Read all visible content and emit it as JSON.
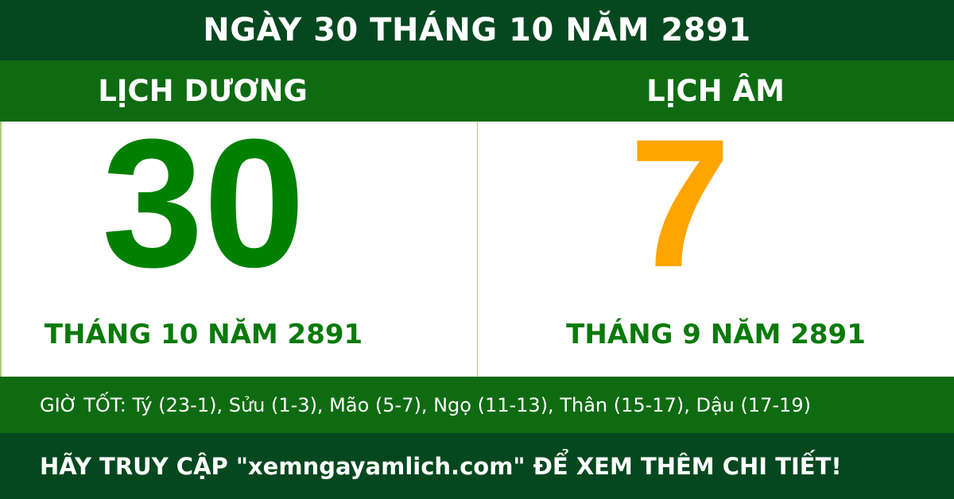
{
  "title": "NGÀY 30 THÁNG 10 NĂM 2891",
  "solar": {
    "label": "LỊCH DƯƠNG",
    "day": "30",
    "month_year": "THÁNG 10 NĂM 2891"
  },
  "lunar": {
    "label": "LỊCH ÂM",
    "day": "7",
    "month_year": "THÁNG 9 NĂM 2891"
  },
  "good_hours": "GIỜ TỐT: Tý (23-1), Sửu (1-3), Mão (5-7), Ngọ (11-13), Thân (15-17), Dậu (17-19)",
  "footer": "HÃY TRUY CẬP \"xemngayamlich.com\" ĐỂ XEM THÊM CHI TIẾT!",
  "colors": {
    "dark_green": "#05481f",
    "band_green": "#0f6b12",
    "solar_day": "#008000",
    "lunar_day": "#ffa500"
  }
}
